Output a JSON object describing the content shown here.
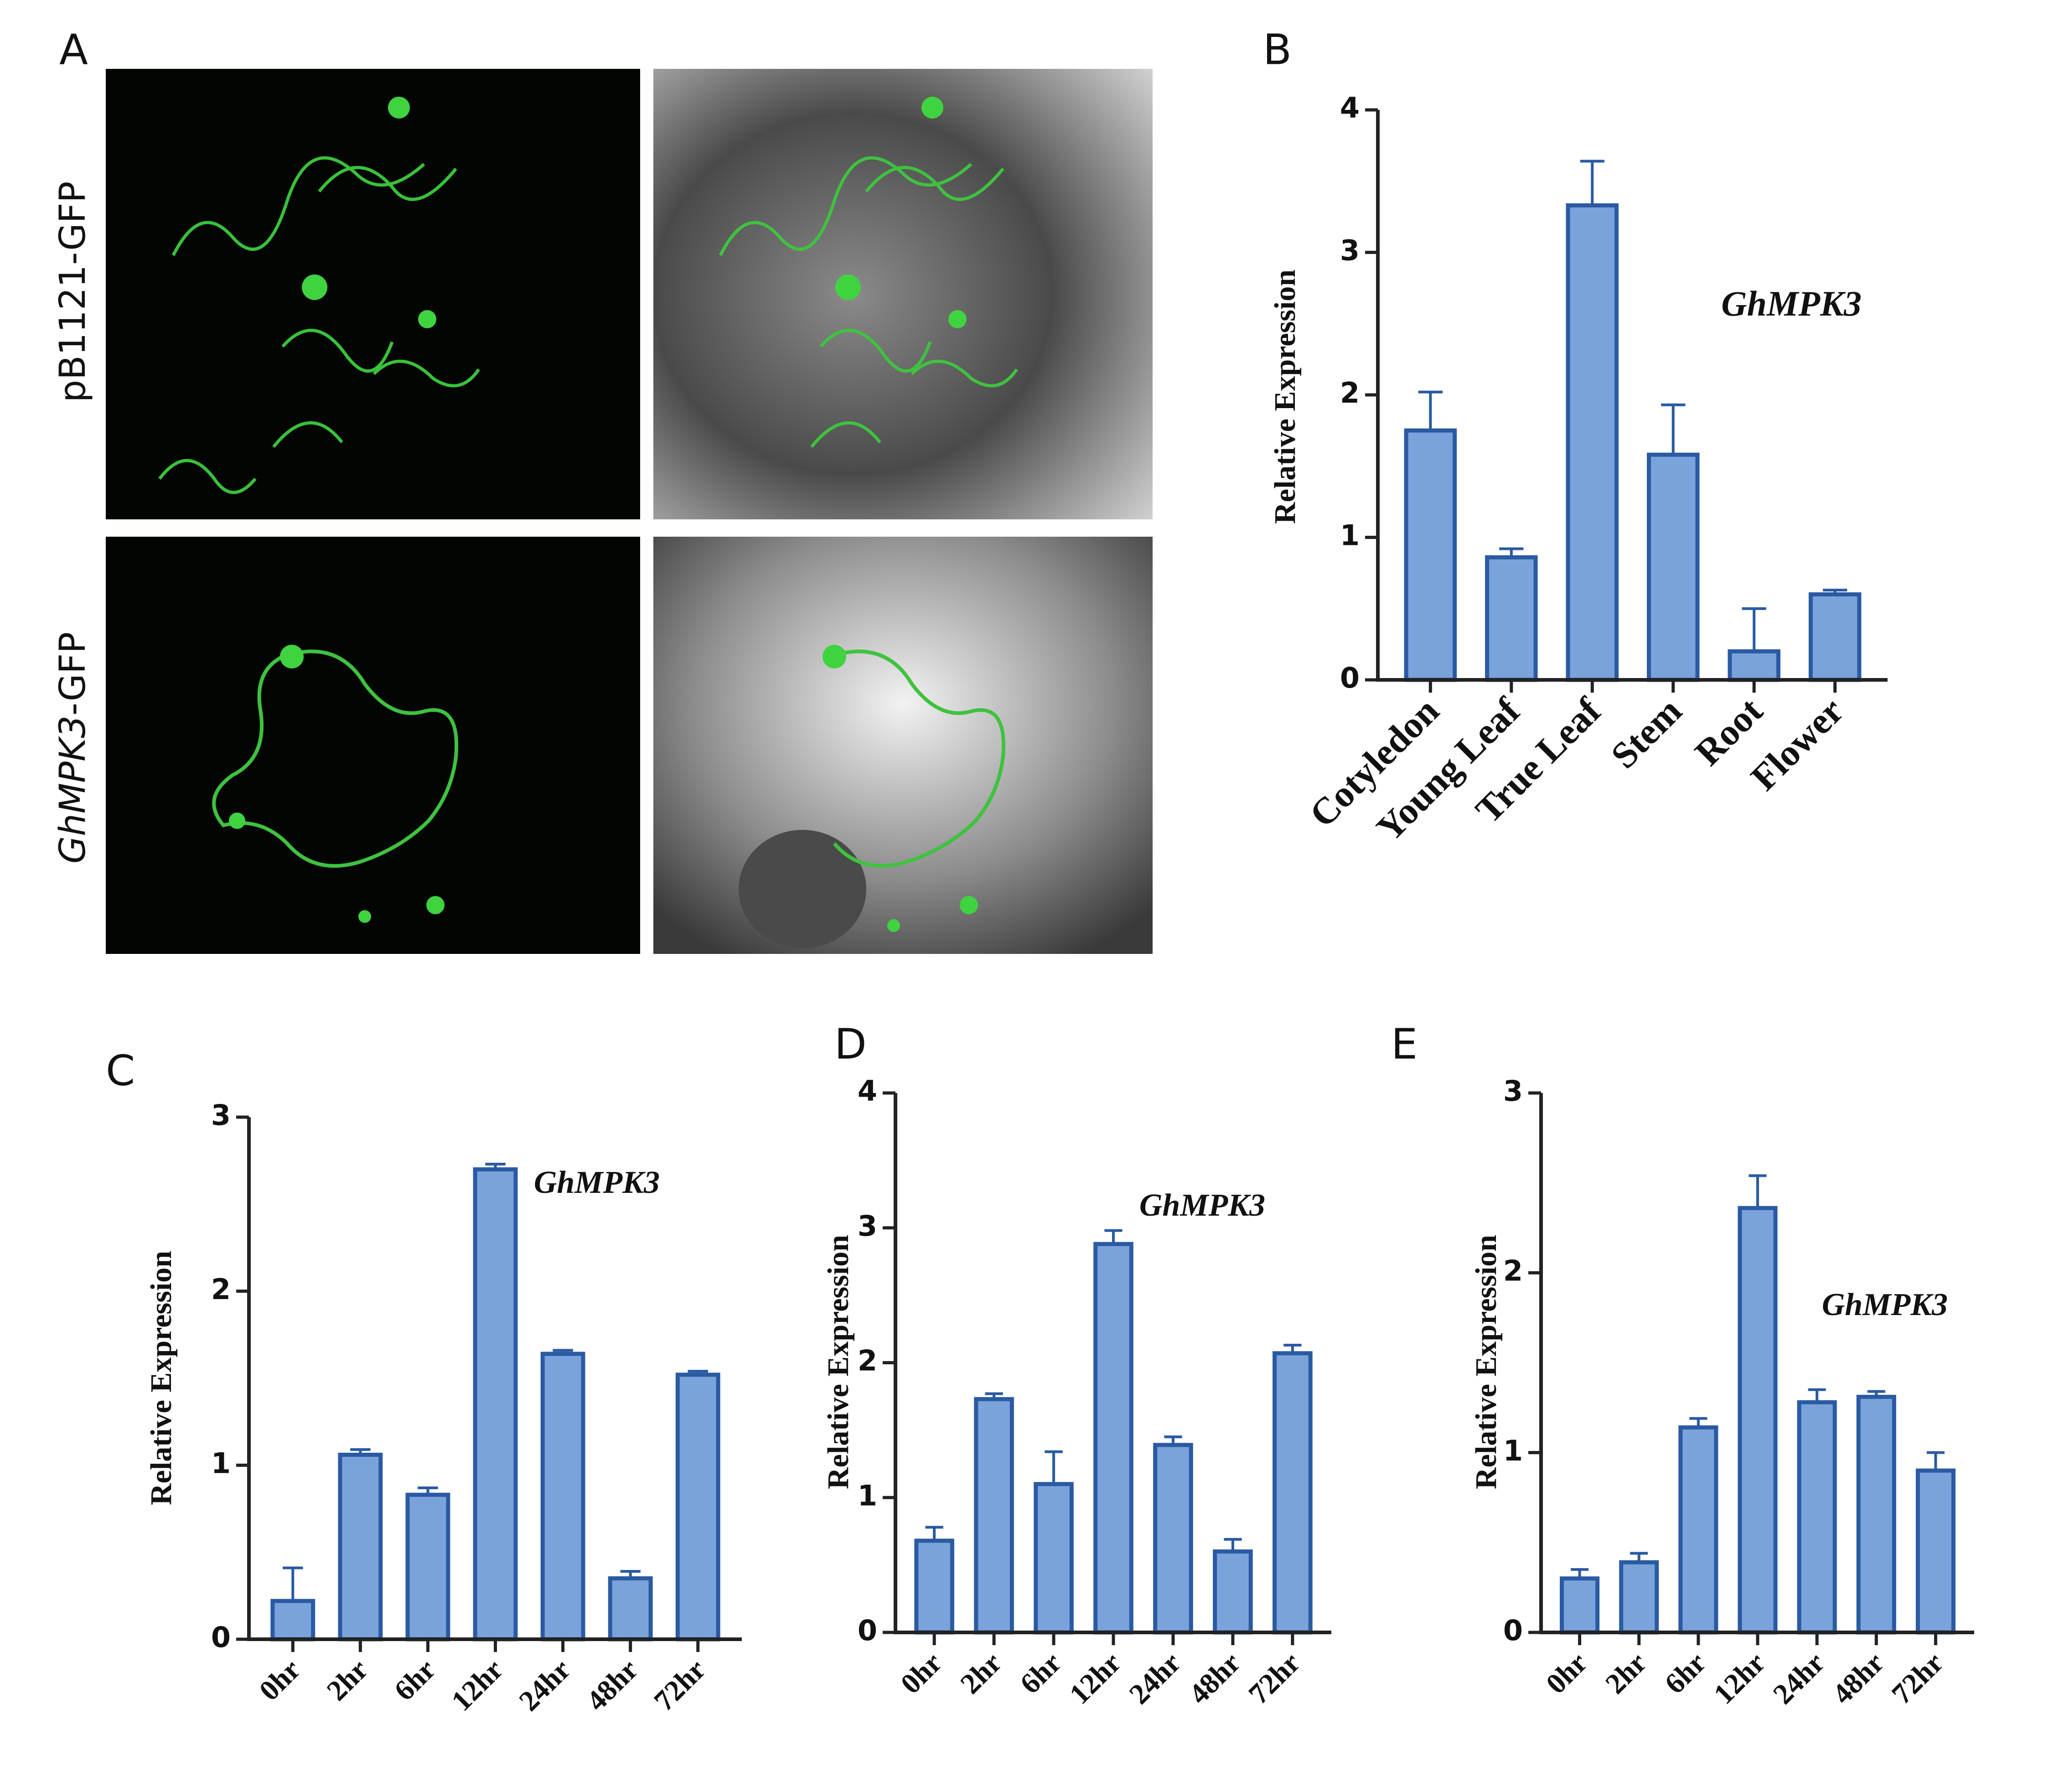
{
  "figure": {
    "panel_a": {
      "label": "A",
      "row_labels": [
        [
          "pB1121-GFP"
        ],
        [
          "GhMPK3",
          "-GFP"
        ]
      ]
    }
  },
  "chart_data": [
    {
      "type": "bar",
      "panel": "B",
      "y_label": "Relative Expression",
      "annotation": "GhMPK3",
      "categories": [
        "Cotyledon",
        "Young Leaf",
        "True Leaf",
        "Stem",
        "Root",
        "Flower"
      ],
      "values": [
        1.75,
        0.86,
        3.33,
        1.58,
        0.2,
        0.6
      ],
      "errors": [
        0.27,
        0.06,
        0.31,
        0.35,
        0.3,
        0.03
      ],
      "ylim": [
        0,
        4
      ],
      "yticks": [
        0,
        1,
        2,
        3,
        4
      ],
      "color": "#7ba3db",
      "edge_color": "#2a5aa2"
    },
    {
      "type": "bar",
      "panel": "C",
      "y_label": "Relative Expression",
      "annotation": "GhMPK3",
      "categories": [
        "0hr",
        "2hr",
        "6hr",
        "12hr",
        "24hr",
        "48hr",
        "72hr"
      ],
      "values": [
        0.22,
        1.06,
        0.83,
        2.7,
        1.64,
        0.35,
        1.52
      ],
      "errors": [
        0.19,
        0.03,
        0.04,
        0.03,
        0.02,
        0.04,
        0.02
      ],
      "ylim": [
        0,
        3
      ],
      "yticks": [
        0,
        1,
        2,
        3
      ],
      "color": "#7ba3db",
      "edge_color": "#2a5aa2"
    },
    {
      "type": "bar",
      "panel": "D",
      "y_label": "Relative Expression",
      "annotation": "GhMPK3",
      "categories": [
        "0hr",
        "2hr",
        "6hr",
        "12hr",
        "24hr",
        "48hr",
        "72hr"
      ],
      "values": [
        0.68,
        1.73,
        1.1,
        2.88,
        1.39,
        0.6,
        2.07
      ],
      "errors": [
        0.1,
        0.04,
        0.24,
        0.1,
        0.06,
        0.09,
        0.06
      ],
      "ylim": [
        0,
        4
      ],
      "yticks": [
        0,
        1,
        2,
        3,
        4
      ],
      "color": "#7ba3db",
      "edge_color": "#2a5aa2"
    },
    {
      "type": "bar",
      "panel": "E",
      "y_label": "Relative Expression",
      "annotation": "GhMPK3",
      "categories": [
        "0hr",
        "2hr",
        "6hr",
        "12hr",
        "24hr",
        "48hr",
        "72hr"
      ],
      "values": [
        0.3,
        0.39,
        1.14,
        2.36,
        1.28,
        1.31,
        0.9
      ],
      "errors": [
        0.05,
        0.05,
        0.05,
        0.18,
        0.07,
        0.03,
        0.1
      ],
      "ylim": [
        0,
        3
      ],
      "yticks": [
        0,
        1,
        2,
        3
      ],
      "color": "#7ba3db",
      "edge_color": "#2a5aa2"
    }
  ]
}
